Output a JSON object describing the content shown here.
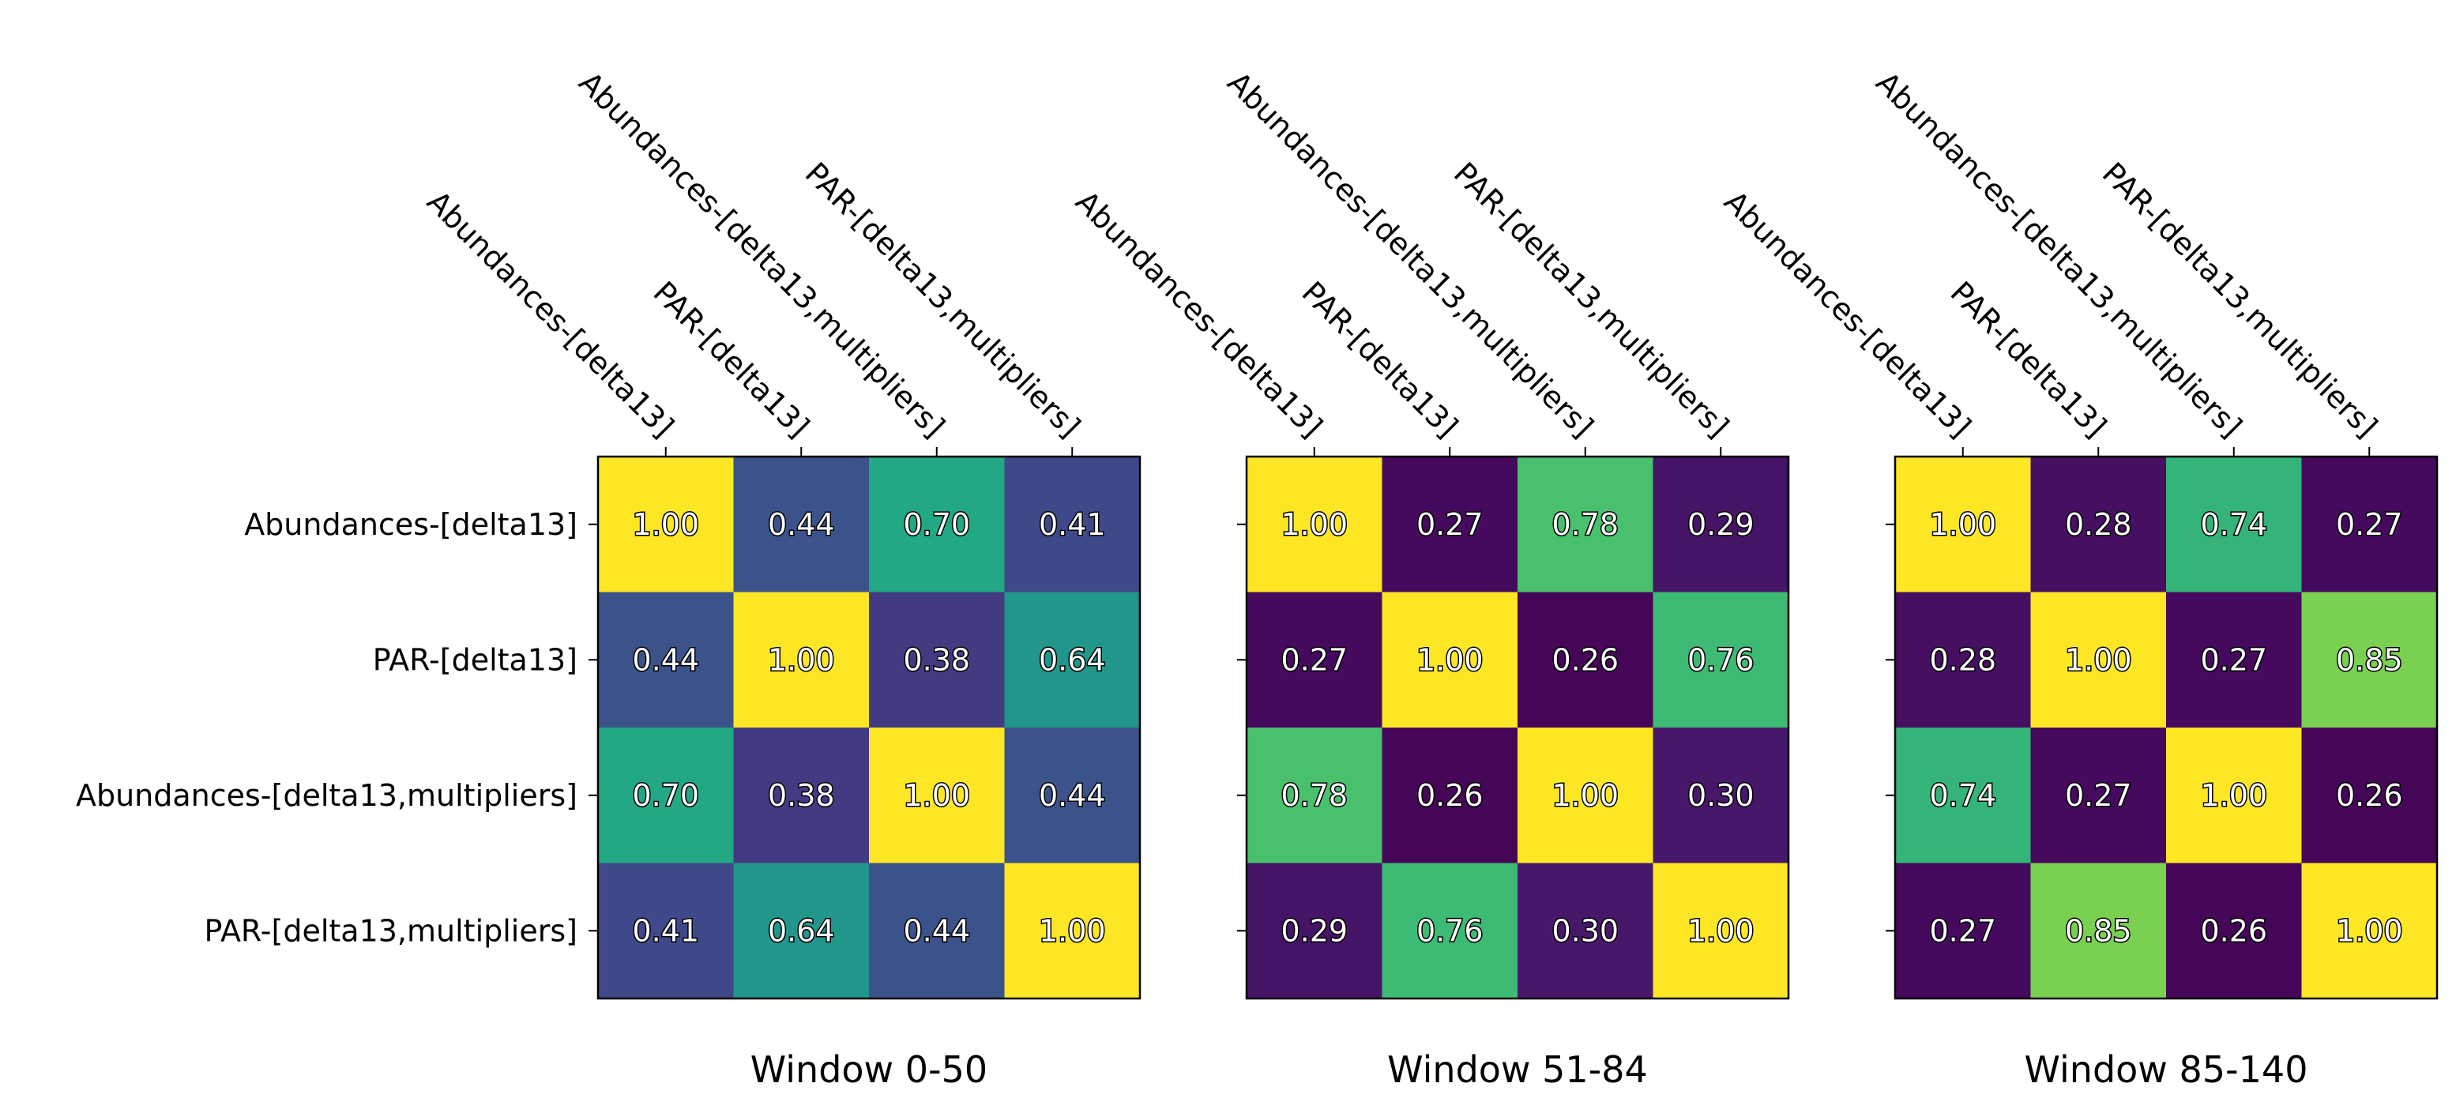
{
  "chart_data": {
    "type": "heatmap",
    "labels": [
      "Abundances-[delta13]",
      "PAR-[delta13]",
      "Abundances-[delta13,multipliers]",
      "PAR-[delta13,multipliers]"
    ],
    "vmin": 0.25,
    "vmax": 1.0,
    "colormap": "viridis",
    "panels": [
      {
        "title": "Window 0-50",
        "matrix": [
          [
            1.0,
            0.44,
            0.7,
            0.41
          ],
          [
            0.44,
            1.0,
            0.38,
            0.64
          ],
          [
            0.7,
            0.38,
            1.0,
            0.44
          ],
          [
            0.41,
            0.64,
            0.44,
            1.0
          ]
        ]
      },
      {
        "title": "Window 51-84",
        "matrix": [
          [
            1.0,
            0.27,
            0.78,
            0.29
          ],
          [
            0.27,
            1.0,
            0.26,
            0.76
          ],
          [
            0.78,
            0.26,
            1.0,
            0.3
          ],
          [
            0.29,
            0.76,
            0.3,
            1.0
          ]
        ]
      },
      {
        "title": "Window 85-140",
        "matrix": [
          [
            1.0,
            0.28,
            0.74,
            0.27
          ],
          [
            0.28,
            1.0,
            0.27,
            0.85
          ],
          [
            0.74,
            0.27,
            1.0,
            0.26
          ],
          [
            0.27,
            0.85,
            0.26,
            1.0
          ]
        ]
      }
    ]
  }
}
